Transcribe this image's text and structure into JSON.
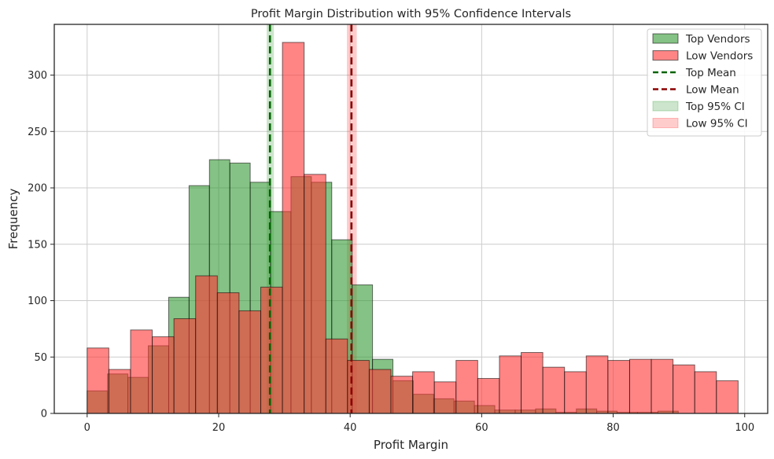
{
  "chart_data": {
    "type": "histogram",
    "title": "Profit Margin Distribution with 95% Confidence Intervals",
    "xlabel": "Profit Margin",
    "ylabel": "Frequency",
    "xlim": [
      -5,
      103.5
    ],
    "ylim": [
      0,
      345
    ],
    "xticks": [
      0,
      20,
      40,
      60,
      80,
      100
    ],
    "yticks": [
      0,
      50,
      100,
      150,
      200,
      250,
      300
    ],
    "grid": true,
    "legend_position": "top-right",
    "series": [
      {
        "name": "Top Vendors",
        "color": "#339933",
        "alpha": 0.6,
        "bins": [
          {
            "x0": 0.0,
            "x1": 3.1,
            "count": 20
          },
          {
            "x0": 3.1,
            "x1": 6.2,
            "count": 35
          },
          {
            "x0": 6.2,
            "x1": 9.3,
            "count": 32
          },
          {
            "x0": 9.3,
            "x1": 12.4,
            "count": 60
          },
          {
            "x0": 12.4,
            "x1": 15.5,
            "count": 103
          },
          {
            "x0": 15.5,
            "x1": 18.6,
            "count": 202
          },
          {
            "x0": 18.6,
            "x1": 21.7,
            "count": 225
          },
          {
            "x0": 21.7,
            "x1": 24.8,
            "count": 222
          },
          {
            "x0": 24.8,
            "x1": 27.9,
            "count": 205
          },
          {
            "x0": 27.9,
            "x1": 31.0,
            "count": 179
          },
          {
            "x0": 31.0,
            "x1": 34.1,
            "count": 210
          },
          {
            "x0": 34.1,
            "x1": 37.2,
            "count": 205
          },
          {
            "x0": 37.2,
            "x1": 40.3,
            "count": 154
          },
          {
            "x0": 40.3,
            "x1": 43.4,
            "count": 114
          },
          {
            "x0": 43.4,
            "x1": 46.5,
            "count": 48
          },
          {
            "x0": 46.5,
            "x1": 49.6,
            "count": 29
          },
          {
            "x0": 49.6,
            "x1": 52.7,
            "count": 17
          },
          {
            "x0": 52.7,
            "x1": 55.8,
            "count": 13
          },
          {
            "x0": 55.8,
            "x1": 58.9,
            "count": 11
          },
          {
            "x0": 58.9,
            "x1": 62.0,
            "count": 7
          },
          {
            "x0": 62.0,
            "x1": 65.1,
            "count": 3
          },
          {
            "x0": 65.1,
            "x1": 68.2,
            "count": 3
          },
          {
            "x0": 68.2,
            "x1": 71.3,
            "count": 4
          },
          {
            "x0": 71.3,
            "x1": 74.4,
            "count": 1
          },
          {
            "x0": 74.4,
            "x1": 77.5,
            "count": 4
          },
          {
            "x0": 77.5,
            "x1": 80.6,
            "count": 2
          },
          {
            "x0": 80.6,
            "x1": 83.7,
            "count": 1
          },
          {
            "x0": 83.7,
            "x1": 86.8,
            "count": 1
          },
          {
            "x0": 86.8,
            "x1": 89.9,
            "count": 2
          }
        ]
      },
      {
        "name": "Low Vendors",
        "color": "#ff3333",
        "alpha": 0.6,
        "bins": [
          {
            "x0": 0.0,
            "x1": 3.3,
            "count": 58
          },
          {
            "x0": 3.3,
            "x1": 6.6,
            "count": 39
          },
          {
            "x0": 6.6,
            "x1": 9.9,
            "count": 74
          },
          {
            "x0": 9.9,
            "x1": 13.2,
            "count": 68
          },
          {
            "x0": 13.2,
            "x1": 16.5,
            "count": 84
          },
          {
            "x0": 16.5,
            "x1": 19.8,
            "count": 122
          },
          {
            "x0": 19.8,
            "x1": 23.1,
            "count": 107
          },
          {
            "x0": 23.1,
            "x1": 26.4,
            "count": 91
          },
          {
            "x0": 26.4,
            "x1": 29.7,
            "count": 112
          },
          {
            "x0": 29.7,
            "x1": 33.0,
            "count": 329
          },
          {
            "x0": 33.0,
            "x1": 36.3,
            "count": 212
          },
          {
            "x0": 36.3,
            "x1": 39.6,
            "count": 66
          },
          {
            "x0": 39.6,
            "x1": 42.9,
            "count": 47
          },
          {
            "x0": 42.9,
            "x1": 46.2,
            "count": 39
          },
          {
            "x0": 46.2,
            "x1": 49.5,
            "count": 33
          },
          {
            "x0": 49.5,
            "x1": 52.8,
            "count": 37
          },
          {
            "x0": 52.8,
            "x1": 56.1,
            "count": 28
          },
          {
            "x0": 56.1,
            "x1": 59.4,
            "count": 47
          },
          {
            "x0": 59.4,
            "x1": 62.7,
            "count": 31
          },
          {
            "x0": 62.7,
            "x1": 66.0,
            "count": 51
          },
          {
            "x0": 66.0,
            "x1": 69.3,
            "count": 54
          },
          {
            "x0": 69.3,
            "x1": 72.6,
            "count": 41
          },
          {
            "x0": 72.6,
            "x1": 75.9,
            "count": 37
          },
          {
            "x0": 75.9,
            "x1": 79.2,
            "count": 51
          },
          {
            "x0": 79.2,
            "x1": 82.5,
            "count": 47
          },
          {
            "x0": 82.5,
            "x1": 85.8,
            "count": 48
          },
          {
            "x0": 85.8,
            "x1": 89.1,
            "count": 48
          },
          {
            "x0": 89.1,
            "x1": 92.4,
            "count": 43
          },
          {
            "x0": 92.4,
            "x1": 95.7,
            "count": 37
          },
          {
            "x0": 95.7,
            "x1": 99.0,
            "count": 29
          }
        ]
      }
    ],
    "mean_lines": [
      {
        "name": "Top Mean",
        "x": 27.8,
        "color": "#006400"
      },
      {
        "name": "Low Mean",
        "x": 40.2,
        "color": "#8b0000"
      }
    ],
    "ci_bands": [
      {
        "name": "Top 95% CI",
        "x0": 27.3,
        "x1": 28.4,
        "color": "#339933",
        "alpha": 0.25
      },
      {
        "name": "Low 95% CI",
        "x0": 39.5,
        "x1": 41.0,
        "color": "#ff3333",
        "alpha": 0.25
      }
    ]
  }
}
